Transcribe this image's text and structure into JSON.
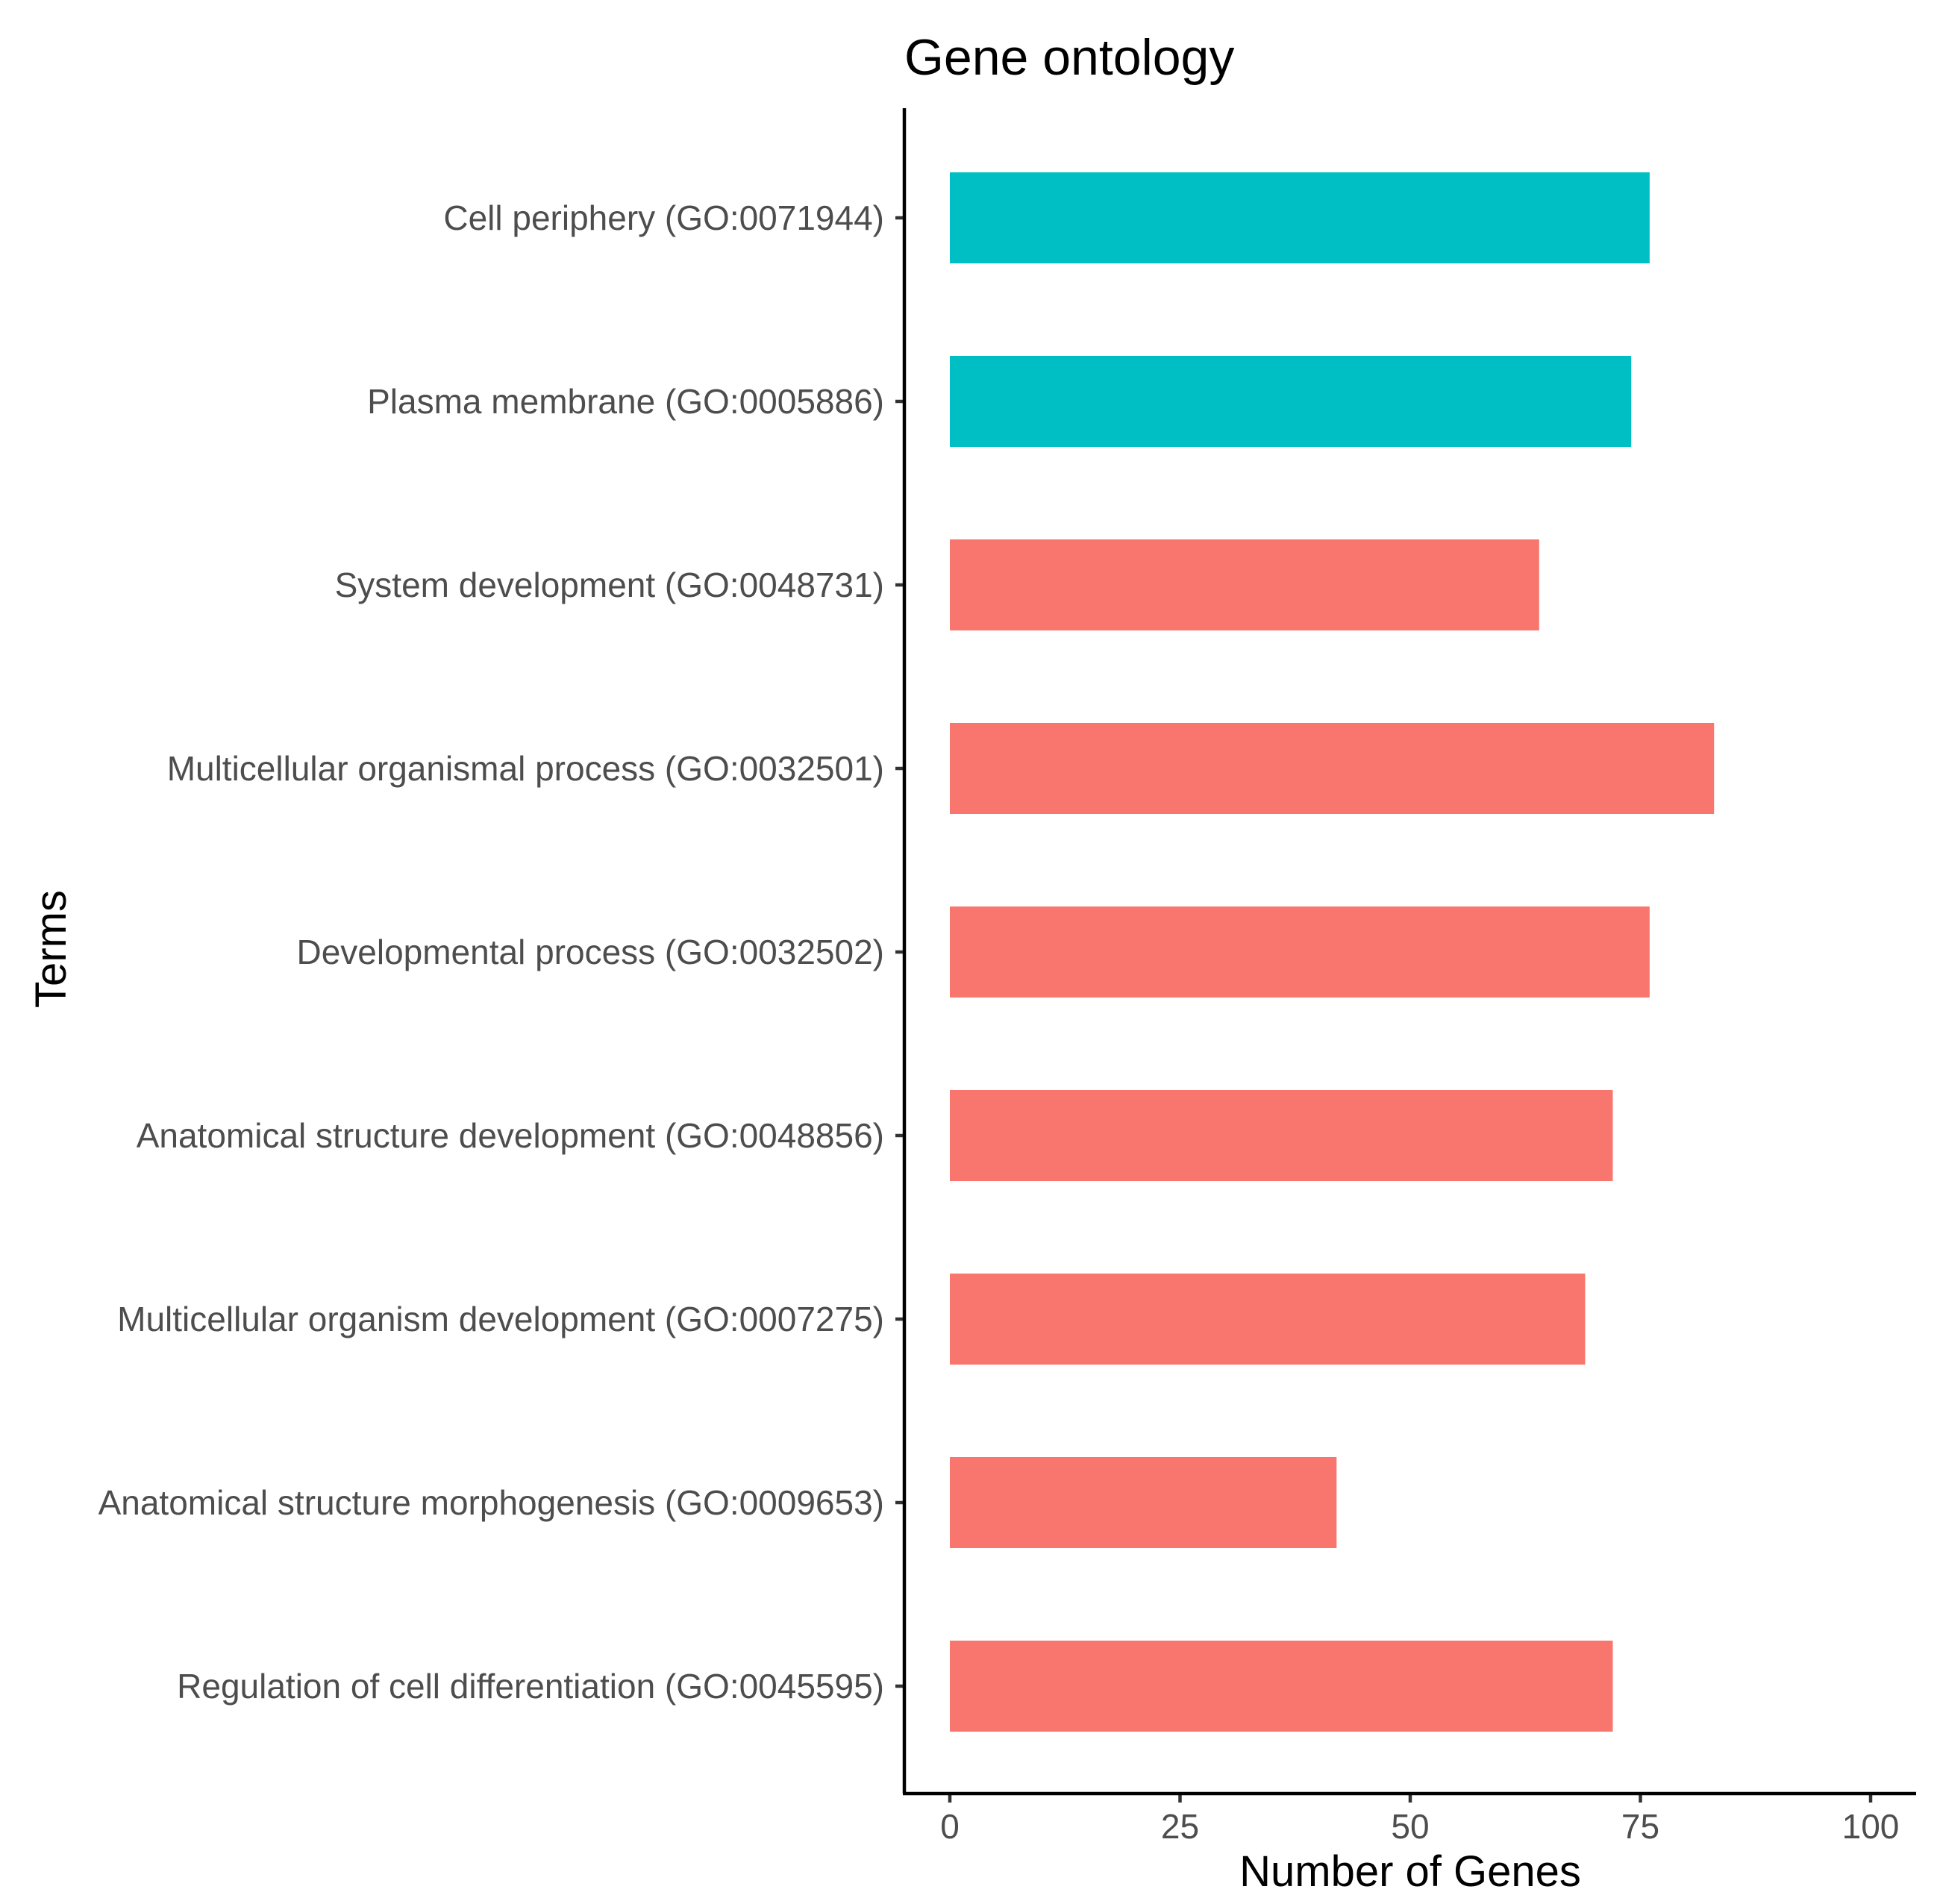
{
  "chart_data": {
    "type": "bar",
    "orientation": "horizontal",
    "title": "Gene ontology",
    "xlabel": "Number of Genes",
    "ylabel": "Terms",
    "xlim": [
      -5,
      105
    ],
    "xticks": [
      0,
      25,
      50,
      75,
      100
    ],
    "xtick_labels": [
      "0",
      "25",
      "50",
      "75",
      "100"
    ],
    "grid": false,
    "legend": "none",
    "categories": [
      "Cell periphery (GO:0071944)",
      "Plasma membrane (GO:0005886)",
      "System development (GO:0048731)",
      "Multicellular organismal process (GO:0032501)",
      "Developmental process (GO:0032502)",
      "Anatomical structure development (GO:0048856)",
      "Multicellular organism development (GO:0007275)",
      "Anatomical structure morphogenesis (GO:0009653)",
      "Regulation of cell differentiation (GO:0045595)"
    ],
    "values": [
      76,
      74,
      64,
      83,
      76,
      72,
      69,
      42,
      72
    ],
    "bar_colors": [
      "#00BFC4",
      "#00BFC4",
      "#F8766D",
      "#F8766D",
      "#F8766D",
      "#F8766D",
      "#F8766D",
      "#F8766D",
      "#F8766D"
    ]
  }
}
